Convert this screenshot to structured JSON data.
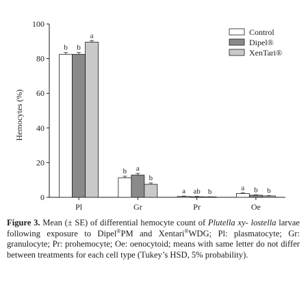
{
  "chart_data": {
    "type": "bar",
    "categories": [
      "Pl",
      "Gr",
      "Pr",
      "Oe"
    ],
    "series": [
      {
        "name": "Control",
        "values": [
          82.5,
          11.2,
          0.5,
          2.2
        ],
        "errors": [
          1.0,
          1.0,
          0.2,
          0.3
        ],
        "letters": [
          "b",
          "b",
          "a",
          "a"
        ],
        "color": "#ffffff"
      },
      {
        "name": "Dipel®",
        "values": [
          82.5,
          12.8,
          0.3,
          1.2
        ],
        "errors": [
          1.0,
          1.0,
          0.2,
          0.2
        ],
        "letters": [
          "b",
          "a",
          "ab",
          "b"
        ],
        "color": "#8a8a8a"
      },
      {
        "name": "XenTari®",
        "values": [
          89.5,
          7.5,
          0.2,
          0.8
        ],
        "errors": [
          0.8,
          0.8,
          0.1,
          0.2
        ],
        "letters": [
          "a",
          "b",
          "b",
          "b"
        ],
        "color": "#c9c9c9"
      }
    ],
    "ylabel": "Hemocytes (%)",
    "xlabel": "",
    "ylim": [
      0,
      100
    ],
    "yticks": [
      "0",
      "20",
      "40",
      "60",
      "80",
      "100"
    ],
    "grid": false,
    "legend_position": "top-right"
  },
  "caption": {
    "label": "Figure 3.",
    "part1": " Mean (± SE) of differential hemocyte count of ",
    "species1": "Plutella xy-",
    "species2": "lostella",
    "part2": " larvae following exposure to Dipel",
    "reg1": "®",
    "part3": "PM and Xentari",
    "reg2": "®",
    "part4": "WDG; Pl: plasmatocyte; Gr: granulocyte; Pr: prohemocyte; Oe: oenocytoid; means with same letter do not differ between treatments for each cell type (Tukey’s HSD, 5% probability)."
  }
}
